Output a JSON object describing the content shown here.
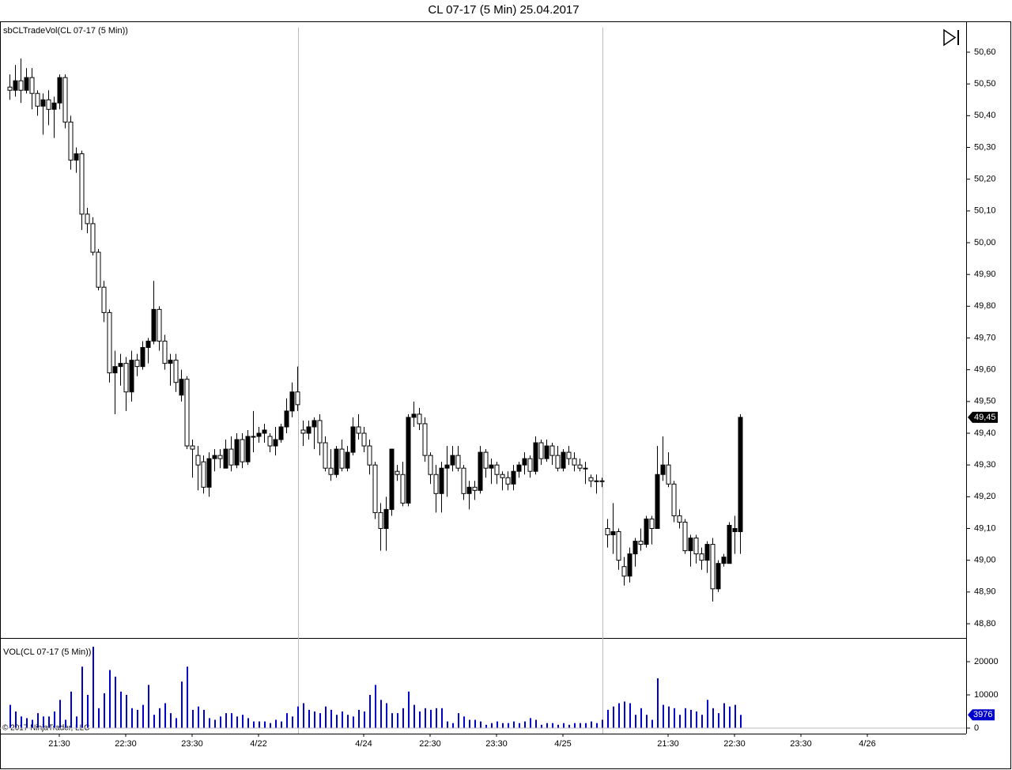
{
  "footer": "© 2017 NinjaTrader, LLC",
  "chart_data": [
    {
      "type": "candlestick",
      "title": "CL 07-17 (5 Min)  25.04.2017",
      "label": "sbCLTradeVol(CL 07-17 (5 Min))",
      "up_color": "#000000",
      "down_color": "#ffffff",
      "open": [
        50.49,
        50.48,
        50.51,
        50.48,
        50.52,
        50.47,
        50.43,
        50.45,
        50.42,
        50.44,
        50.52,
        50.38,
        50.26,
        50.28,
        50.09,
        50.06,
        49.97,
        49.86,
        49.78,
        49.59,
        49.61,
        49.62,
        49.53,
        49.63,
        49.61,
        49.67,
        49.69,
        49.79,
        49.69,
        49.62,
        49.63,
        49.52,
        49.57,
        49.36,
        49.33,
        49.31,
        49.23,
        49.32,
        49.33,
        49.29,
        49.35,
        49.3,
        49.38,
        49.31,
        49.39,
        49.39,
        49.4,
        49.39,
        49.36,
        49.38,
        49.42,
        49.47,
        49.53,
        49.41,
        49.4,
        49.42,
        49.44,
        49.37,
        49.29,
        49.27,
        49.35,
        49.29,
        49.34,
        49.42,
        49.4,
        49.36,
        49.3,
        49.15,
        49.1,
        49.16,
        49.28,
        49.27,
        49.18,
        49.45,
        49.46,
        49.43,
        49.33,
        49.27,
        49.21,
        49.29,
        49.3,
        49.33,
        49.29,
        49.21,
        49.23,
        49.22,
        49.34,
        49.29,
        49.3,
        49.27,
        49.26,
        49.24,
        49.28,
        49.3,
        49.32,
        49.28,
        49.37,
        49.32,
        49.36,
        49.33,
        49.29,
        49.34,
        49.32,
        49.3,
        49.29,
        49.26,
        49.25,
        49.25,
        49.1,
        49.08,
        49.09,
        48.98,
        48.95,
        49.02,
        49.06,
        49.05,
        49.13,
        49.1,
        49.27,
        49.3,
        49.24,
        49.14,
        49.12,
        49.03,
        49.07,
        49.02,
        49.0,
        49.05,
        48.91,
        48.99,
        48.99,
        49.09,
        49.09
      ],
      "high": [
        50.53,
        50.56,
        50.58,
        50.55,
        50.55,
        50.48,
        50.47,
        50.48,
        50.46,
        50.53,
        50.53,
        50.4,
        50.3,
        50.29,
        50.11,
        50.08,
        49.98,
        49.88,
        49.79,
        49.66,
        49.65,
        49.64,
        49.66,
        49.65,
        49.69,
        49.7,
        49.88,
        49.8,
        49.71,
        49.65,
        49.65,
        49.6,
        49.58,
        49.38,
        49.36,
        49.33,
        49.34,
        49.35,
        49.35,
        49.38,
        49.39,
        49.4,
        49.4,
        49.41,
        49.47,
        49.42,
        49.43,
        49.4,
        49.42,
        49.43,
        49.51,
        49.56,
        49.61,
        49.44,
        49.44,
        49.45,
        49.46,
        49.39,
        49.35,
        49.36,
        49.38,
        49.36,
        49.45,
        49.46,
        49.42,
        49.38,
        49.31,
        49.18,
        49.2,
        49.35,
        49.3,
        49.31,
        49.46,
        49.5,
        49.48,
        49.45,
        49.34,
        49.3,
        49.31,
        49.36,
        49.36,
        49.36,
        49.3,
        49.25,
        49.25,
        49.36,
        49.35,
        49.32,
        49.31,
        49.28,
        49.28,
        49.3,
        49.31,
        49.34,
        49.33,
        49.39,
        49.38,
        49.38,
        49.37,
        49.36,
        49.35,
        49.36,
        49.34,
        49.32,
        49.31,
        49.27,
        49.27,
        49.26,
        49.13,
        49.18,
        49.1,
        49.01,
        49.04,
        49.07,
        49.1,
        49.14,
        49.14,
        49.36,
        49.39,
        49.34,
        49.25,
        49.16,
        49.13,
        49.08,
        49.08,
        49.04,
        49.06,
        49.07,
        49.0,
        49.02,
        49.12,
        49.14,
        49.46
      ],
      "low": [
        50.45,
        50.46,
        50.44,
        50.47,
        50.42,
        50.4,
        50.34,
        50.37,
        50.33,
        50.42,
        50.36,
        50.23,
        50.22,
        50.04,
        50.03,
        49.96,
        49.85,
        49.75,
        49.56,
        49.46,
        49.55,
        49.47,
        49.5,
        49.58,
        49.6,
        49.62,
        49.68,
        49.66,
        49.6,
        49.55,
        49.53,
        49.5,
        49.35,
        49.26,
        49.22,
        49.21,
        49.2,
        49.28,
        49.29,
        49.29,
        49.28,
        49.29,
        49.29,
        49.3,
        49.34,
        49.37,
        49.37,
        49.34,
        49.33,
        49.37,
        49.4,
        49.45,
        49.47,
        49.36,
        49.38,
        49.35,
        49.33,
        49.28,
        49.25,
        49.26,
        49.28,
        49.28,
        49.33,
        49.38,
        49.34,
        49.27,
        49.13,
        49.03,
        49.03,
        49.14,
        49.25,
        49.17,
        49.17,
        49.42,
        49.41,
        49.31,
        49.24,
        49.15,
        49.15,
        49.2,
        49.28,
        49.28,
        49.19,
        49.16,
        49.19,
        49.21,
        49.26,
        49.24,
        49.24,
        49.22,
        49.22,
        49.22,
        49.26,
        49.27,
        49.26,
        49.27,
        49.3,
        49.31,
        49.3,
        49.28,
        49.28,
        49.3,
        49.28,
        49.28,
        49.24,
        49.23,
        49.21,
        49.23,
        49.04,
        49.02,
        48.97,
        48.92,
        48.93,
        48.98,
        49.03,
        49.04,
        49.05,
        49.1,
        49.25,
        49.23,
        49.12,
        49.1,
        49.02,
        48.98,
        48.99,
        48.97,
        48.96,
        48.87,
        48.9,
        48.98,
        48.99,
        49.02,
        49.02
      ],
      "close": [
        50.48,
        50.51,
        50.48,
        50.52,
        50.47,
        50.43,
        50.45,
        50.42,
        50.44,
        50.52,
        50.38,
        50.26,
        50.28,
        50.09,
        50.06,
        49.97,
        49.86,
        49.78,
        49.59,
        49.61,
        49.62,
        49.53,
        49.63,
        49.61,
        49.67,
        49.69,
        49.79,
        49.69,
        49.62,
        49.63,
        49.56,
        49.57,
        49.36,
        49.35,
        49.3,
        49.23,
        49.32,
        49.33,
        49.32,
        49.35,
        49.3,
        49.38,
        49.31,
        49.39,
        49.39,
        49.4,
        49.41,
        49.36,
        49.38,
        49.42,
        49.47,
        49.53,
        49.49,
        49.4,
        49.42,
        49.44,
        49.37,
        49.29,
        49.27,
        49.35,
        49.29,
        49.34,
        49.42,
        49.4,
        49.36,
        49.3,
        49.15,
        49.1,
        49.16,
        49.35,
        49.27,
        49.18,
        49.45,
        49.46,
        49.43,
        49.33,
        49.27,
        49.21,
        49.29,
        49.3,
        49.33,
        49.29,
        49.21,
        49.23,
        49.22,
        49.34,
        49.29,
        49.3,
        49.27,
        49.26,
        49.24,
        49.28,
        49.3,
        49.32,
        49.28,
        49.37,
        49.32,
        49.36,
        49.33,
        49.29,
        49.34,
        49.32,
        49.3,
        49.29,
        49.29,
        49.25,
        49.25,
        49.25,
        49.08,
        49.09,
        49.0,
        48.95,
        49.02,
        49.06,
        49.05,
        49.13,
        49.1,
        49.27,
        49.3,
        49.24,
        49.14,
        49.12,
        49.03,
        49.07,
        49.02,
        49.0,
        49.05,
        48.91,
        48.99,
        49.01,
        49.11,
        49.1,
        49.45
      ],
      "ylim": [
        48.7577,
        50.6946
      ],
      "yticks": [
        {
          "value": 48.8,
          "label": "48,80"
        },
        {
          "value": 48.9,
          "label": "48,90"
        },
        {
          "value": 49.0,
          "label": "49,00"
        },
        {
          "value": 49.1,
          "label": "49,10"
        },
        {
          "value": 49.2,
          "label": "49,20"
        },
        {
          "value": 49.3,
          "label": "49,30"
        },
        {
          "value": 49.4,
          "label": "49,40"
        },
        {
          "value": 49.5,
          "label": "49,50"
        },
        {
          "value": 49.6,
          "label": "49,60"
        },
        {
          "value": 49.7,
          "label": "49,70"
        },
        {
          "value": 49.8,
          "label": "49,80"
        },
        {
          "value": 49.9,
          "label": "49,90"
        },
        {
          "value": 50.0,
          "label": "50,00"
        },
        {
          "value": 50.1,
          "label": "50,10"
        },
        {
          "value": 50.2,
          "label": "50,20"
        },
        {
          "value": 50.3,
          "label": "50,30"
        },
        {
          "value": 50.4,
          "label": "50,40"
        },
        {
          "value": 50.5,
          "label": "50,50"
        },
        {
          "value": 50.6,
          "label": "50,60"
        }
      ],
      "xlim": [
        -1.714,
        172.857
      ],
      "xticks": [
        {
          "value": 9,
          "label": "21:30"
        },
        {
          "value": 21,
          "label": "22:30"
        },
        {
          "value": 33,
          "label": "23:30"
        },
        {
          "value": 45,
          "label": "4/22"
        },
        {
          "value": 64,
          "label": "4/24"
        },
        {
          "value": 76,
          "label": "22:30"
        },
        {
          "value": 88,
          "label": "23:30"
        },
        {
          "value": 100,
          "label": "4/25"
        },
        {
          "value": 119,
          "label": "21:30"
        },
        {
          "value": 131,
          "label": "22:30"
        },
        {
          "value": 143,
          "label": "23:30"
        },
        {
          "value": 155,
          "label": "4/26"
        }
      ],
      "session_breaks": [
        52.14,
        107.14
      ],
      "last_price": {
        "value": 49.45,
        "label": "49,45"
      }
    },
    {
      "type": "bar",
      "label": "VOL(CL 07-17 (5 Min))",
      "color": "#0000cc",
      "values": [
        7000,
        5000,
        3500,
        3000,
        2500,
        4500,
        3500,
        3500,
        5000,
        8500,
        2500,
        11000,
        3500,
        18500,
        10000,
        24500,
        6000,
        10500,
        17500,
        15500,
        11000,
        10000,
        6000,
        5500,
        7000,
        13000,
        4000,
        6000,
        7500,
        4500,
        3000,
        14000,
        18500,
        5500,
        6500,
        5500,
        3000,
        2500,
        3500,
        4500,
        4500,
        3500,
        4000,
        3000,
        2000,
        2000,
        2000,
        1500,
        2500,
        2000,
        4500,
        3500,
        6500,
        7500,
        5500,
        5000,
        4500,
        6500,
        5500,
        4000,
        5000,
        4000,
        3500,
        5500,
        5000,
        10000,
        13000,
        8500,
        7500,
        4500,
        4500,
        6000,
        11000,
        7000,
        5000,
        6000,
        5500,
        6000,
        6000,
        2000,
        1500,
        4500,
        3500,
        2500,
        2500,
        2000,
        1000,
        1500,
        2000,
        1500,
        1500,
        2000,
        1500,
        2000,
        3000,
        2500,
        1000,
        1500,
        1500,
        1000,
        1500,
        1000,
        1500,
        1500,
        1500,
        2000,
        1500,
        2500,
        5500,
        6500,
        7500,
        8000,
        7500,
        4000,
        6000,
        4000,
        2500,
        15000,
        7000,
        6500,
        6000,
        4000,
        6000,
        5500,
        5000,
        4000,
        8500,
        6000,
        4500,
        7500,
        6500,
        7000,
        3976
      ],
      "ylim": [
        -1667,
        26905
      ],
      "yticks": [
        0,
        10000,
        20000
      ]
    }
  ]
}
